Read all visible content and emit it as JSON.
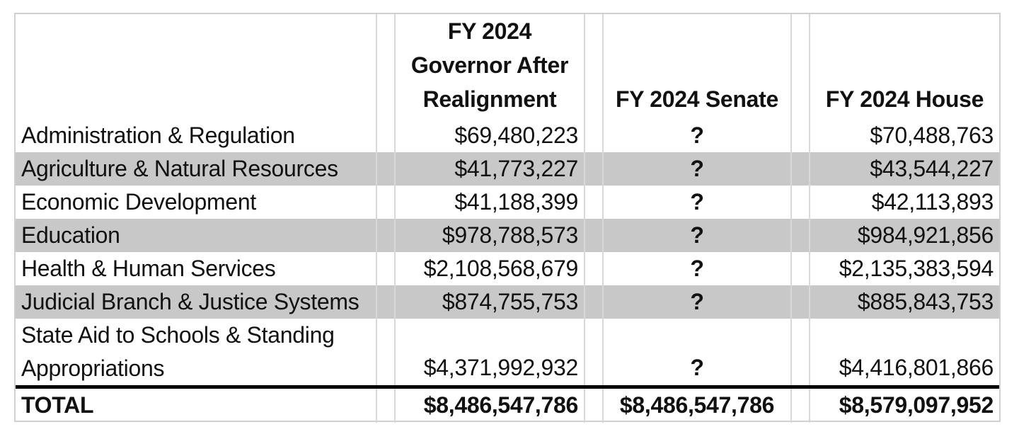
{
  "table": {
    "headers": {
      "governor_lines": [
        "FY 2024",
        "Governor After",
        "Realignment"
      ],
      "senate": "FY 2024 Senate",
      "house": "FY 2024 House"
    },
    "rows": [
      {
        "label": "Administration & Regulation",
        "governor": "$69,480,223",
        "senate": "?",
        "house": "$70,488,763"
      },
      {
        "label": "Agriculture & Natural Resources",
        "governor": "$41,773,227",
        "senate": "?",
        "house": "$43,544,227"
      },
      {
        "label": "Economic Development",
        "governor": "$41,188,399",
        "senate": "?",
        "house": "$42,113,893"
      },
      {
        "label": "Education",
        "governor": "$978,788,573",
        "senate": "?",
        "house": "$984,921,856"
      },
      {
        "label": "Health & Human Services",
        "governor": "$2,108,568,679",
        "senate": "?",
        "house": "$2,135,383,594"
      },
      {
        "label": "Judicial Branch & Justice Systems",
        "governor": "$874,755,753",
        "senate": "?",
        "house": "$885,843,753"
      },
      {
        "label_lines": [
          "State Aid to Schools & Standing",
          "Appropriations"
        ],
        "governor": "$4,371,992,932",
        "senate": "?",
        "house": "$4,416,801,866"
      }
    ],
    "total": {
      "label": "TOTAL",
      "governor": "$8,486,547,786",
      "senate": "$8,486,547,786",
      "house": "$8,579,097,952"
    },
    "colors": {
      "shade": "#c8c8c8",
      "grid": "#d8d8d8",
      "total_rule": "#000000"
    }
  }
}
